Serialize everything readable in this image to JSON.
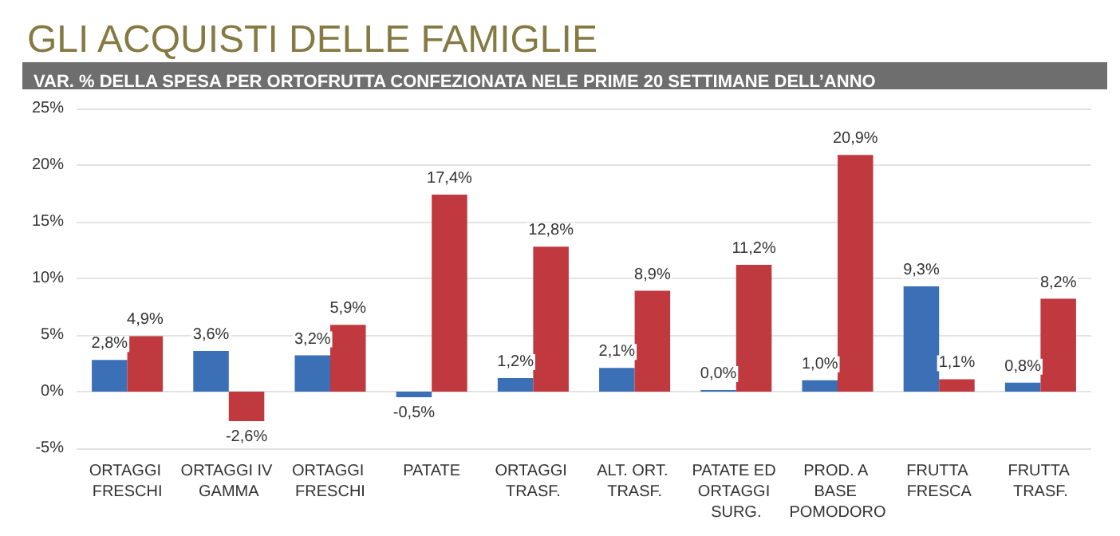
{
  "chart_data": {
    "type": "bar",
    "title": "GLI ACQUISTI DELLE FAMIGLIE",
    "subtitle": "VAR. % DELLA SPESA PER ORTOFRUTTA CONFEZIONATA NELE PRIME 20 SETTIMANE DELL’ANNO",
    "categories": [
      "ORTAGGI FRESCHI",
      "ORTAGGI IV GAMMA",
      "ORTAGGI FRESCHI",
      "PATATE",
      "ORTAGGI TRASF.",
      "ALT. ORT. TRASF.",
      "PATATE ED ORTAGGI SURG.",
      "PROD. A BASE POMODORO",
      "FRUTTA FRESCA",
      "FRUTTA TRASF."
    ],
    "series": [
      {
        "color": "#3b6fb6",
        "values": [
          2.8,
          3.6,
          3.2,
          -0.5,
          1.2,
          2.1,
          0.0,
          1.0,
          9.3,
          0.8
        ],
        "value_labels": [
          "2,8%",
          "3,6%",
          "3,2%",
          "-0,5%",
          "1,2%",
          "2,1%",
          "0,0%",
          "1,0%",
          "9,3%",
          "0,8%"
        ]
      },
      {
        "color": "#c0393f",
        "values": [
          4.9,
          -2.6,
          5.9,
          17.4,
          12.8,
          8.9,
          11.2,
          20.9,
          1.1,
          8.2
        ],
        "value_labels": [
          "4,9%",
          "-2,6%",
          "5,9%",
          "17,4%",
          "12,8%",
          "8,9%",
          "11,2%",
          "20,9%",
          "1,1%",
          "8,2%"
        ]
      }
    ],
    "ylim": [
      -5,
      25
    ],
    "yticks": [
      {
        "value": -5,
        "label": "-5%"
      },
      {
        "value": 0,
        "label": "0%"
      },
      {
        "value": 5,
        "label": "5%"
      },
      {
        "value": 10,
        "label": "10%"
      },
      {
        "value": 15,
        "label": "15%"
      },
      {
        "value": 20,
        "label": "20%"
      },
      {
        "value": 25,
        "label": "25%"
      }
    ],
    "grid": "y"
  }
}
